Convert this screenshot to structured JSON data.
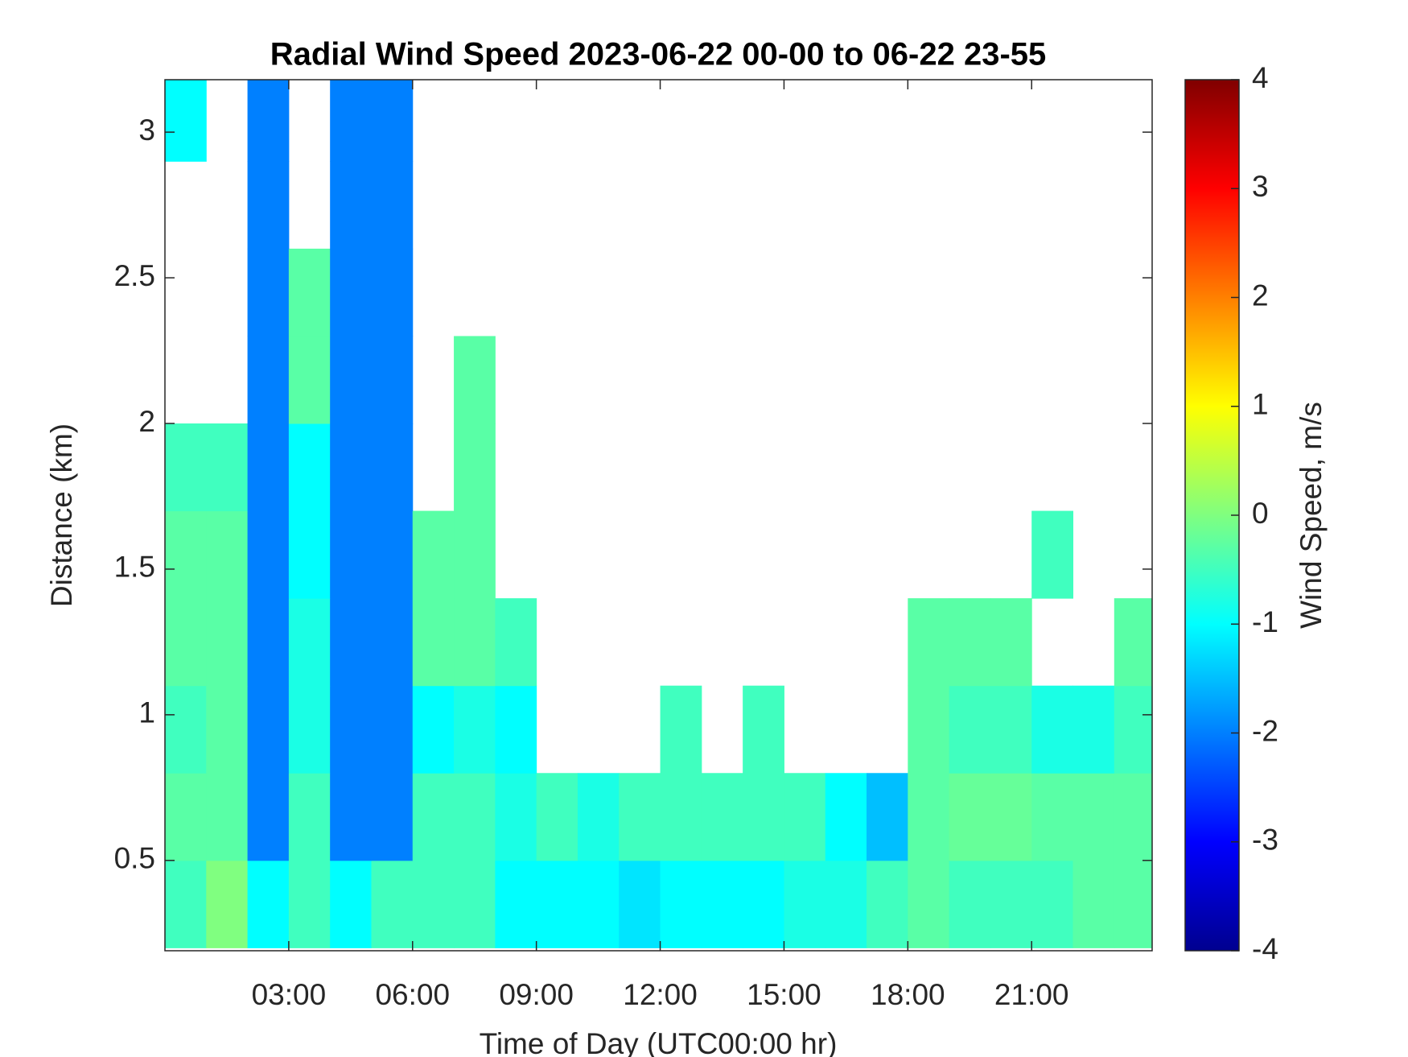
{
  "chart_data": {
    "type": "heatmap",
    "title": "Radial Wind Speed 2023-06-22 00-00 to 06-22 23-55",
    "x_label": "Time of Day (UTC00:00 hr)",
    "y_label": "Distance (km)",
    "colorbar_label": "Wind Speed, m/s",
    "colormap": "jet",
    "x": [
      0.5,
      1.5,
      2.5,
      3.5,
      4.5,
      5.5,
      6.5,
      7.5,
      8.5,
      9.5,
      10.5,
      11.5,
      12.5,
      13.5,
      14.5,
      15.5,
      16.5,
      17.5,
      18.5,
      19.5,
      20.5,
      21.5,
      22.5,
      23.5
    ],
    "y": [
      0.35,
      0.65,
      0.95,
      1.25,
      1.55,
      1.85,
      2.15,
      2.45,
      2.75,
      3.05
    ],
    "z": [
      [
        -0.5,
        0,
        -1,
        -0.5,
        -1,
        -0.5,
        -0.5,
        -0.5,
        -1,
        -1,
        -1,
        -1.2,
        -1,
        -1,
        -1,
        -0.8,
        -0.8,
        -0.5,
        -0.3,
        -0.5,
        -0.5,
        -0.5,
        -0.3,
        -0.3
      ],
      [
        -0.3,
        -0.3,
        -2,
        -0.5,
        -2,
        -2,
        -0.5,
        -0.5,
        -0.8,
        -0.5,
        -0.8,
        -0.5,
        -0.5,
        -0.5,
        -0.5,
        -0.5,
        -1,
        -1.5,
        -0.3,
        -0.2,
        -0.2,
        -0.3,
        -0.3,
        -0.3
      ],
      [
        -0.5,
        -0.3,
        -2,
        -0.8,
        -2,
        -2,
        -1,
        -0.8,
        -1,
        null,
        null,
        null,
        -0.5,
        null,
        -0.5,
        null,
        null,
        null,
        -0.3,
        -0.5,
        -0.5,
        -0.8,
        -0.8,
        -0.5
      ],
      [
        -0.3,
        -0.3,
        -2,
        -0.8,
        -2,
        -2,
        -0.3,
        -0.3,
        -0.5,
        null,
        null,
        null,
        null,
        null,
        null,
        null,
        null,
        null,
        -0.3,
        -0.3,
        -0.3,
        null,
        null,
        -0.3
      ],
      [
        -0.3,
        -0.3,
        -2,
        -1,
        -2,
        -2,
        -0.3,
        -0.3,
        null,
        null,
        null,
        null,
        null,
        null,
        null,
        null,
        null,
        null,
        null,
        null,
        null,
        -0.5,
        null,
        null
      ],
      [
        -0.5,
        -0.5,
        -2,
        -1,
        -2,
        -2,
        null,
        -0.3,
        null,
        null,
        null,
        null,
        null,
        null,
        null,
        null,
        null,
        null,
        null,
        null,
        null,
        null,
        null,
        null
      ],
      [
        null,
        null,
        -2,
        -0.3,
        -2,
        -2,
        null,
        -0.3,
        null,
        null,
        null,
        null,
        null,
        null,
        null,
        null,
        null,
        null,
        null,
        null,
        null,
        null,
        null,
        null
      ],
      [
        null,
        null,
        -2,
        -0.3,
        -2,
        -2,
        null,
        null,
        null,
        null,
        null,
        null,
        null,
        null,
        null,
        null,
        null,
        null,
        null,
        null,
        null,
        null,
        null,
        null
      ],
      [
        null,
        null,
        -2,
        null,
        -2,
        -2,
        null,
        null,
        null,
        null,
        null,
        null,
        null,
        null,
        null,
        null,
        null,
        null,
        null,
        null,
        null,
        null,
        null,
        null
      ],
      [
        -1,
        null,
        -2,
        null,
        -2,
        -2,
        null,
        null,
        null,
        null,
        null,
        null,
        null,
        null,
        null,
        null,
        null,
        null,
        null,
        null,
        null,
        null,
        null,
        null
      ]
    ],
    "xlim": [
      0,
      23.92
    ],
    "xticks": [
      {
        "value": 3,
        "label": "03:00"
      },
      {
        "value": 6,
        "label": "06:00"
      },
      {
        "value": 9,
        "label": "09:00"
      },
      {
        "value": 12,
        "label": "12:00"
      },
      {
        "value": 15,
        "label": "15:00"
      },
      {
        "value": 18,
        "label": "18:00"
      },
      {
        "value": 21,
        "label": "21:00"
      }
    ],
    "ylim": [
      0.19,
      3.18
    ],
    "yticks": [
      0.5,
      1,
      1.5,
      2,
      2.5,
      3
    ],
    "clim": [
      -4,
      4
    ],
    "cticks": [
      -4,
      -3,
      -2,
      -1,
      0,
      1,
      2,
      3,
      4
    ]
  }
}
